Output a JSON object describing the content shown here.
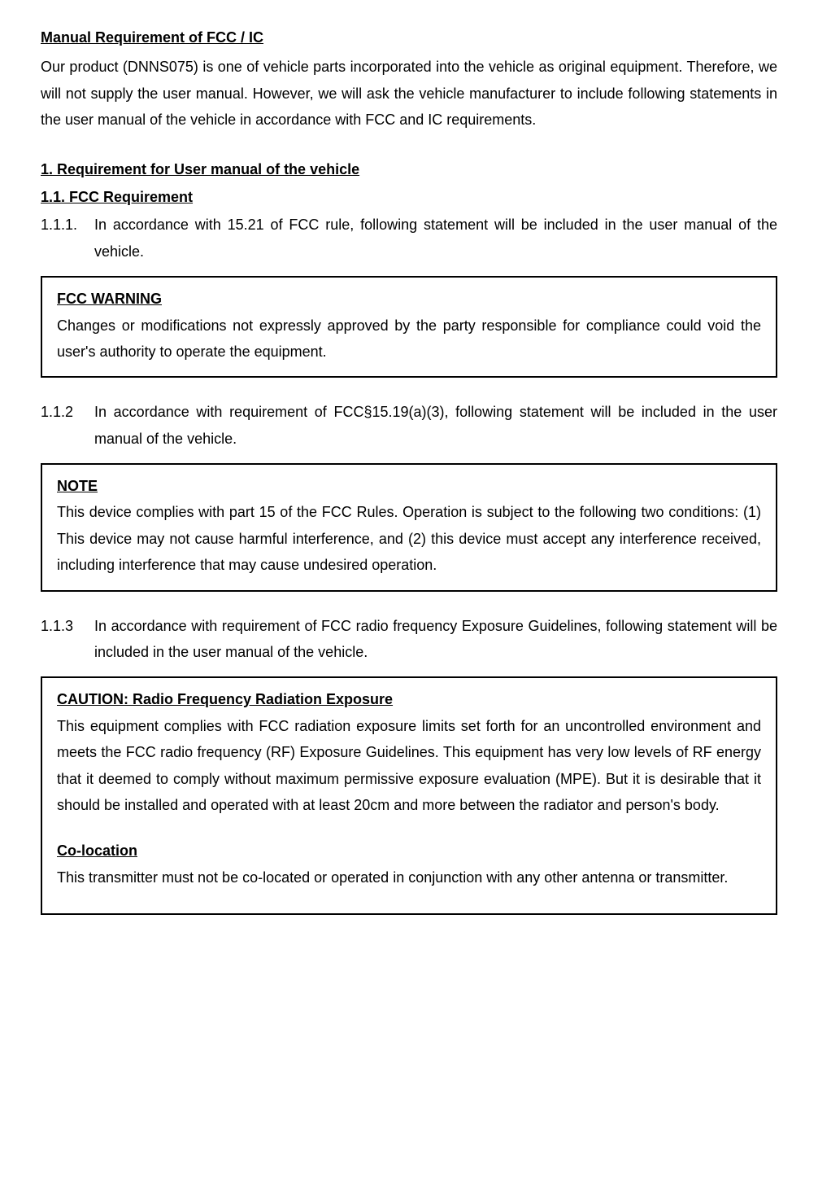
{
  "title": "Manual Requirement of FCC / IC",
  "intro": "Our product (DNNS075) is one of vehicle parts incorporated into the vehicle as original equipment. Therefore, we will not supply the user manual.  However, we will ask the vehicle manufacturer to include following statements in the user manual of the vehicle in accordance with FCC and IC requirements.",
  "section1": {
    "heading": "1. Requirement for User manual of the vehicle",
    "subsection": "1.1. FCC Requirement",
    "items": [
      {
        "number": "1.1.1.",
        "text": "In accordance with 15.21 of FCC rule, following statement will be included in the user manual of the vehicle."
      },
      {
        "number": "1.1.2",
        "text": "In accordance with requirement of FCC§15.19(a)(3), following statement will be included in the user manual of the vehicle."
      },
      {
        "number": "1.1.3",
        "text": "In accordance with requirement of FCC radio frequency Exposure Guidelines, following statement will be included in the user manual of the vehicle."
      }
    ]
  },
  "box1": {
    "heading": "FCC WARNING",
    "text": "Changes or modifications not expressly approved by the party responsible for compliance could void the user's authority to operate the equipment."
  },
  "box2": {
    "heading": "NOTE",
    "text": "This device complies with part 15 of the FCC Rules.  Operation is subject to the following two conditions: (1) This device may not cause harmful interference, and (2) this device must accept any interference received, including interference that may cause undesired operation."
  },
  "box3": {
    "heading": "CAUTION: Radio Frequency Radiation Exposure",
    "text": "This equipment complies with FCC radiation exposure limits set forth for an uncontrolled environment and meets the FCC radio frequency (RF) Exposure Guidelines.  This equipment has very low levels of RF energy that it deemed to comply without maximum permissive exposure evaluation (MPE).    But it is desirable that it should be installed and operated with at least 20cm and more between the radiator and person's body.",
    "subheading": "Co-location",
    "subtext": "This transmitter must not be co-located or operated in conjunction with any other antenna or transmitter."
  },
  "colors": {
    "text": "#000000",
    "background": "#ffffff",
    "border": "#000000"
  },
  "typography": {
    "font_family": "Arial, sans-serif",
    "base_fontsize": 18,
    "line_height": 1.8
  }
}
